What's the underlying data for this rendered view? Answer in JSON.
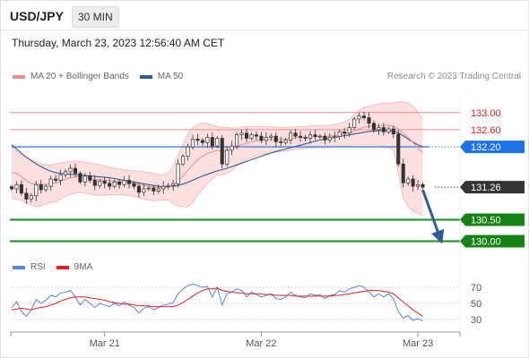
{
  "header": {
    "symbol": "USD/JPY",
    "interval": "30 MIN",
    "timestamp": "Thursday, March 23, 2023 12:56:40 AM CET"
  },
  "legend": {
    "items": [
      {
        "label": "MA 20 + Bollinger Bands",
        "color": "#f08c8c"
      },
      {
        "label": "MA 50",
        "color": "#2e5b9a"
      }
    ],
    "credit": "Research © 2023 Trading Central"
  },
  "rsi_legend": {
    "items": [
      {
        "label": "RSI",
        "color": "#5b86e0"
      },
      {
        "label": "9MA",
        "color": "#e02020"
      }
    ]
  },
  "chart_data": [
    {
      "type": "candlestick",
      "y_range": [
        129.55,
        133.35
      ],
      "x_range": [
        0,
        85
      ],
      "x_ticks": [
        {
          "x": 19,
          "label": "Mar 21"
        },
        {
          "x": 51,
          "label": "Mar 22"
        },
        {
          "x": 83,
          "label": "Mar 23"
        }
      ],
      "levels": [
        {
          "value": 133.0,
          "label": "133.00",
          "style": "resistance-red"
        },
        {
          "value": 132.6,
          "label": "132.60",
          "style": "resistance-red"
        },
        {
          "value": 132.2,
          "label": "132.20",
          "style": "current-blue"
        },
        {
          "value": 131.26,
          "label": "131.26",
          "style": "last-price"
        },
        {
          "value": 130.5,
          "label": "130.50",
          "style": "support-green"
        },
        {
          "value": 130.0,
          "label": "130.00",
          "style": "support-green"
        }
      ],
      "close": [
        131.22,
        131.32,
        131.12,
        130.98,
        131.06,
        131.32,
        131.2,
        131.28,
        131.45,
        131.42,
        131.55,
        131.62,
        131.7,
        131.58,
        131.38,
        131.52,
        131.42,
        131.3,
        131.4,
        131.35,
        131.28,
        131.38,
        131.32,
        131.42,
        131.34,
        131.28,
        131.14,
        131.22,
        131.24,
        131.17,
        131.22,
        131.28,
        131.3,
        131.34,
        131.8,
        131.98,
        132.2,
        132.38,
        132.35,
        132.3,
        132.42,
        132.22,
        132.4,
        131.8,
        132.12,
        132.22,
        132.48,
        132.52,
        132.4,
        132.48,
        132.45,
        132.35,
        132.42,
        132.45,
        132.32,
        132.3,
        132.36,
        132.52,
        132.45,
        132.42,
        132.4,
        132.48,
        132.44,
        132.45,
        132.36,
        132.42,
        132.44,
        132.55,
        132.52,
        132.65,
        132.85,
        132.92,
        132.88,
        132.75,
        132.6,
        132.65,
        132.55,
        132.62,
        132.5,
        131.8,
        131.36,
        131.45,
        131.28,
        131.32,
        131.26
      ],
      "ma20": [
        131.6,
        131.58,
        131.5,
        131.42,
        131.35,
        131.33,
        131.32,
        131.32,
        131.34,
        131.36,
        131.4,
        131.44,
        131.48,
        131.5,
        131.5,
        131.48,
        131.46,
        131.44,
        131.43,
        131.42,
        131.41,
        131.4,
        131.39,
        131.38,
        131.37,
        131.35,
        131.32,
        131.3,
        131.28,
        131.26,
        131.25,
        131.25,
        131.26,
        131.3,
        131.4,
        131.52,
        131.65,
        131.78,
        131.9,
        131.98,
        132.05,
        132.08,
        132.12,
        132.1,
        132.12,
        132.15,
        132.2,
        132.25,
        132.28,
        132.32,
        132.34,
        132.35,
        132.36,
        132.37,
        132.37,
        132.37,
        132.38,
        132.4,
        132.41,
        132.42,
        132.42,
        132.43,
        132.44,
        132.44,
        132.44,
        132.45,
        132.46,
        132.48,
        132.5,
        132.53,
        132.57,
        132.62,
        132.66,
        132.68,
        132.69,
        132.7,
        132.7,
        132.7,
        132.68,
        132.62,
        132.52,
        132.42,
        132.3,
        132.18,
        132.05
      ],
      "bb_upper": [
        132.2,
        132.1,
        132.0,
        131.95,
        131.9,
        131.85,
        131.8,
        131.78,
        131.78,
        131.8,
        131.82,
        131.84,
        131.86,
        131.87,
        131.86,
        131.84,
        131.82,
        131.8,
        131.78,
        131.75,
        131.72,
        131.7,
        131.68,
        131.66,
        131.65,
        131.64,
        131.63,
        131.62,
        131.6,
        131.58,
        131.55,
        131.55,
        131.58,
        131.75,
        132.0,
        132.25,
        132.5,
        132.65,
        132.72,
        132.75,
        132.74,
        132.7,
        132.68,
        132.66,
        132.65,
        132.64,
        132.64,
        132.66,
        132.67,
        132.68,
        132.68,
        132.68,
        132.67,
        132.67,
        132.66,
        132.65,
        132.65,
        132.66,
        132.67,
        132.68,
        132.68,
        132.69,
        132.7,
        132.7,
        132.7,
        132.7,
        132.72,
        132.75,
        132.78,
        132.85,
        132.95,
        133.05,
        133.12,
        133.15,
        133.18,
        133.2,
        133.22,
        133.22,
        133.22,
        133.25,
        133.25,
        133.22,
        133.15,
        133.0,
        132.85
      ],
      "bb_lower": [
        131.0,
        130.98,
        130.95,
        130.9,
        130.85,
        130.8,
        130.82,
        130.86,
        130.9,
        130.92,
        130.98,
        131.04,
        131.1,
        131.12,
        131.14,
        131.12,
        131.1,
        131.08,
        131.07,
        131.07,
        131.08,
        131.08,
        131.08,
        131.08,
        131.07,
        131.05,
        131.02,
        130.98,
        130.96,
        130.94,
        130.95,
        130.96,
        130.96,
        130.88,
        130.82,
        130.8,
        130.8,
        130.9,
        131.08,
        131.2,
        131.35,
        131.45,
        131.55,
        131.55,
        131.58,
        131.65,
        131.75,
        131.85,
        131.9,
        131.95,
        132.0,
        132.02,
        132.04,
        132.06,
        132.08,
        132.08,
        132.1,
        132.12,
        132.14,
        132.15,
        132.16,
        132.17,
        132.18,
        132.18,
        132.18,
        132.2,
        132.2,
        132.22,
        132.22,
        132.22,
        132.2,
        132.2,
        132.2,
        132.2,
        132.2,
        132.2,
        132.18,
        132.18,
        132.14,
        131.6,
        131.0,
        130.8,
        130.7,
        130.65,
        130.6
      ],
      "ma50": [
        132.25,
        132.15,
        132.05,
        131.96,
        131.88,
        131.8,
        131.74,
        131.68,
        131.63,
        131.6,
        131.58,
        131.57,
        131.56,
        131.55,
        131.54,
        131.53,
        131.52,
        131.51,
        131.5,
        131.49,
        131.48,
        131.46,
        131.44,
        131.42,
        131.4,
        131.38,
        131.36,
        131.34,
        131.32,
        131.3,
        131.28,
        131.27,
        131.27,
        131.28,
        131.3,
        131.33,
        131.37,
        131.42,
        131.47,
        131.52,
        131.56,
        131.6,
        131.64,
        131.67,
        131.7,
        131.74,
        131.78,
        131.82,
        131.86,
        131.9,
        131.94,
        131.98,
        132.02,
        132.06,
        132.09,
        132.12,
        132.15,
        132.18,
        132.21,
        132.24,
        132.27,
        132.3,
        132.33,
        132.36,
        132.38,
        132.4,
        132.42,
        132.44,
        132.46,
        132.48,
        132.5,
        132.52,
        132.54,
        132.56,
        132.57,
        132.58,
        132.58,
        132.58,
        132.57,
        132.53,
        132.46,
        132.38,
        132.31,
        132.25,
        132.2
      ],
      "forecast_arrow": {
        "from": {
          "x": 84,
          "y": 131.26
        },
        "to": {
          "x": 87.5,
          "y": 130.0
        },
        "color": "#2e5b9a"
      }
    },
    {
      "type": "line",
      "title": "RSI",
      "y_range": [
        20,
        80
      ],
      "y_ticks": [
        30,
        50,
        70
      ],
      "series": [
        {
          "name": "RSI",
          "color": "#5b86e0",
          "values": [
            45,
            52,
            40,
            34,
            42,
            55,
            50,
            54,
            60,
            58,
            63,
            64,
            66,
            58,
            48,
            55,
            50,
            45,
            50,
            48,
            46,
            50,
            47,
            52,
            48,
            45,
            38,
            44,
            46,
            42,
            45,
            48,
            49,
            51,
            62,
            68,
            72,
            74,
            72,
            70,
            71,
            58,
            70,
            48,
            62,
            64,
            68,
            66,
            58,
            64,
            61,
            58,
            60,
            62,
            56,
            55,
            58,
            64,
            60,
            58,
            57,
            62,
            60,
            61,
            56,
            60,
            61,
            66,
            64,
            68,
            70,
            72,
            70,
            64,
            58,
            62,
            58,
            62,
            56,
            40,
            32,
            35,
            29,
            31,
            28
          ]
        },
        {
          "name": "9MA",
          "color": "#e02020",
          "values": [
            42,
            43,
            44,
            43,
            42,
            44,
            45,
            46,
            48,
            50,
            53,
            55,
            57,
            58,
            58,
            58,
            57,
            56,
            55,
            54,
            52,
            51,
            50,
            49,
            49,
            48,
            47,
            47,
            47,
            46,
            46,
            46,
            46,
            46,
            48,
            51,
            55,
            59,
            63,
            66,
            68,
            68,
            69,
            66,
            65,
            64,
            63,
            63,
            62,
            62,
            62,
            62,
            61,
            61,
            60,
            60,
            60,
            60,
            59,
            59,
            59,
            59,
            59,
            59,
            59,
            59,
            60,
            60,
            61,
            62,
            63,
            64,
            65,
            66,
            66,
            66,
            65,
            64,
            62,
            57,
            52,
            47,
            42,
            38,
            34
          ]
        }
      ]
    }
  ]
}
